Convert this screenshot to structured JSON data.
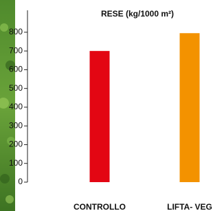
{
  "chart_data": {
    "type": "bar",
    "title": "RESE (kg/1000 m²)",
    "categories": [
      "CONTROLLO",
      "LIFTA- VEG"
    ],
    "series": [
      {
        "values": [
          700,
          795
        ],
        "colors": [
          "#e30613",
          "#f39200"
        ]
      }
    ],
    "ylim": [
      0,
      917
    ],
    "yticks": [
      0,
      100,
      200,
      300,
      400,
      500,
      600,
      700,
      800
    ]
  }
}
